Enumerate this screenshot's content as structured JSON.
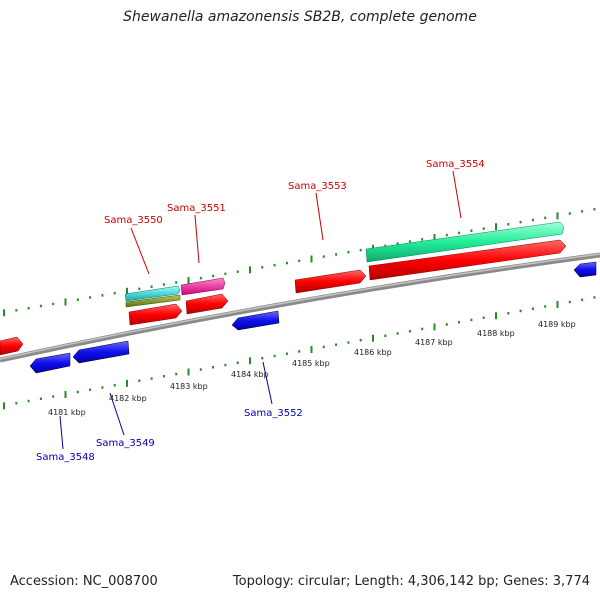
{
  "title": "Shewanella amazonensis SB2B, complete genome",
  "footer": {
    "accession": "Accession: NC_008700",
    "summary": "Topology: circular; Length: 4,306,142 bp; Genes: 3,774"
  },
  "scale_labels": [
    "4181 kbp",
    "4182 kbp",
    "4183 kbp",
    "4184 kbp",
    "4185 kbp",
    "4186 kbp",
    "4187 kbp",
    "4188 kbp",
    "4189 kbp"
  ],
  "genes_forward": [
    {
      "name": "Sama_3550",
      "color": "#cc0000"
    },
    {
      "name": "Sama_3551",
      "color": "#cc0000"
    },
    {
      "name": "Sama_3553",
      "color": "#cc0000"
    },
    {
      "name": "Sama_3554",
      "color": "#cc0000"
    }
  ],
  "genes_reverse": [
    {
      "name": "Sama_3548",
      "color": "#0000aa"
    },
    {
      "name": "Sama_3549",
      "color": "#0000aa"
    },
    {
      "name": "Sama_3552",
      "color": "#0000aa"
    }
  ],
  "colors": {
    "forward_cds": "#ff0000",
    "reverse_cds": "#1010ee",
    "backbone": "#888888",
    "tick": "#2a8a2a",
    "cyan_feature": "#22cccc",
    "olive_feature": "#7a9a20",
    "magenta_feature": "#ff22aa",
    "mint_feature": "#22ee99"
  }
}
